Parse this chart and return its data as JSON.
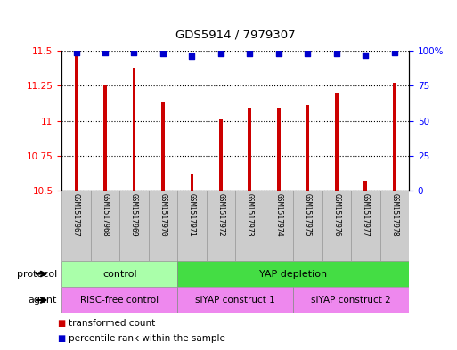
{
  "title": "GDS5914 / 7979307",
  "samples": [
    "GSM1517967",
    "GSM1517968",
    "GSM1517969",
    "GSM1517970",
    "GSM1517971",
    "GSM1517972",
    "GSM1517973",
    "GSM1517974",
    "GSM1517975",
    "GSM1517976",
    "GSM1517977",
    "GSM1517978"
  ],
  "bar_values": [
    11.47,
    11.26,
    11.38,
    11.13,
    10.62,
    11.01,
    11.09,
    11.09,
    11.11,
    11.2,
    10.57,
    11.27
  ],
  "dot_values": [
    99,
    99,
    99,
    98,
    96,
    98,
    98,
    98,
    98,
    98,
    97,
    99
  ],
  "ylim_left": [
    10.5,
    11.5
  ],
  "ylim_right": [
    0,
    100
  ],
  "bar_color": "#cc0000",
  "dot_color": "#0000cc",
  "bg_color": "#ffffff",
  "cell_color": "#cccccc",
  "cell_edge_color": "#999999",
  "protocol_groups": [
    {
      "label": "control",
      "start": 0,
      "end": 3,
      "color": "#aaffaa"
    },
    {
      "label": "YAP depletion",
      "start": 4,
      "end": 11,
      "color": "#44dd44"
    }
  ],
  "agent_groups": [
    {
      "label": "RISC-free control",
      "start": 0,
      "end": 3,
      "color": "#ee88ee"
    },
    {
      "label": "siYAP construct 1",
      "start": 4,
      "end": 7,
      "color": "#ee88ee"
    },
    {
      "label": "siYAP construct 2",
      "start": 8,
      "end": 11,
      "color": "#ee88ee"
    }
  ],
  "yticks_left": [
    10.5,
    10.75,
    11.0,
    11.25,
    11.5
  ],
  "ytick_labels_left": [
    "10.5",
    "10.75",
    "11",
    "11.25",
    "11.5"
  ],
  "yticks_right": [
    0,
    25,
    50,
    75,
    100
  ],
  "ytick_labels_right": [
    "0",
    "25",
    "50",
    "75",
    "100%"
  ]
}
